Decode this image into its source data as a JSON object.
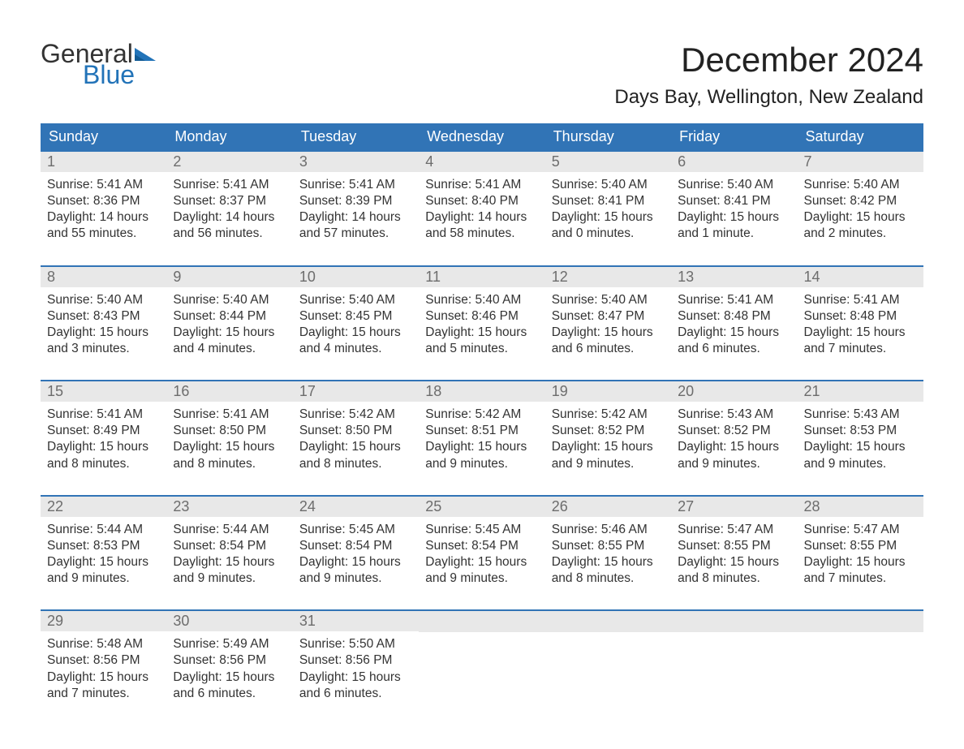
{
  "logo": {
    "line1": "General",
    "line2": "Blue"
  },
  "title": "December 2024",
  "location": "Days Bay, Wellington, New Zealand",
  "colors": {
    "header_bg": "#3174b6",
    "header_text": "#ffffff",
    "daynum_bg": "#e8e8e8",
    "daynum_text": "#6d6d6d",
    "body_text": "#333333",
    "rule": "#3174b6",
    "logo_blue": "#2273b8"
  },
  "layout": {
    "columns": 7,
    "rows": 5,
    "first_weekday": "Sunday"
  },
  "weekdays": [
    "Sunday",
    "Monday",
    "Tuesday",
    "Wednesday",
    "Thursday",
    "Friday",
    "Saturday"
  ],
  "labels": {
    "sunrise": "Sunrise:",
    "sunset": "Sunset:",
    "daylight": "Daylight:"
  },
  "days": [
    {
      "n": 1,
      "sunrise": "5:41 AM",
      "sunset": "8:36 PM",
      "daylight": "14 hours and 55 minutes."
    },
    {
      "n": 2,
      "sunrise": "5:41 AM",
      "sunset": "8:37 PM",
      "daylight": "14 hours and 56 minutes."
    },
    {
      "n": 3,
      "sunrise": "5:41 AM",
      "sunset": "8:39 PM",
      "daylight": "14 hours and 57 minutes."
    },
    {
      "n": 4,
      "sunrise": "5:41 AM",
      "sunset": "8:40 PM",
      "daylight": "14 hours and 58 minutes."
    },
    {
      "n": 5,
      "sunrise": "5:40 AM",
      "sunset": "8:41 PM",
      "daylight": "15 hours and 0 minutes."
    },
    {
      "n": 6,
      "sunrise": "5:40 AM",
      "sunset": "8:41 PM",
      "daylight": "15 hours and 1 minute."
    },
    {
      "n": 7,
      "sunrise": "5:40 AM",
      "sunset": "8:42 PM",
      "daylight": "15 hours and 2 minutes."
    },
    {
      "n": 8,
      "sunrise": "5:40 AM",
      "sunset": "8:43 PM",
      "daylight": "15 hours and 3 minutes."
    },
    {
      "n": 9,
      "sunrise": "5:40 AM",
      "sunset": "8:44 PM",
      "daylight": "15 hours and 4 minutes."
    },
    {
      "n": 10,
      "sunrise": "5:40 AM",
      "sunset": "8:45 PM",
      "daylight": "15 hours and 4 minutes."
    },
    {
      "n": 11,
      "sunrise": "5:40 AM",
      "sunset": "8:46 PM",
      "daylight": "15 hours and 5 minutes."
    },
    {
      "n": 12,
      "sunrise": "5:40 AM",
      "sunset": "8:47 PM",
      "daylight": "15 hours and 6 minutes."
    },
    {
      "n": 13,
      "sunrise": "5:41 AM",
      "sunset": "8:48 PM",
      "daylight": "15 hours and 6 minutes."
    },
    {
      "n": 14,
      "sunrise": "5:41 AM",
      "sunset": "8:48 PM",
      "daylight": "15 hours and 7 minutes."
    },
    {
      "n": 15,
      "sunrise": "5:41 AM",
      "sunset": "8:49 PM",
      "daylight": "15 hours and 8 minutes."
    },
    {
      "n": 16,
      "sunrise": "5:41 AM",
      "sunset": "8:50 PM",
      "daylight": "15 hours and 8 minutes."
    },
    {
      "n": 17,
      "sunrise": "5:42 AM",
      "sunset": "8:50 PM",
      "daylight": "15 hours and 8 minutes."
    },
    {
      "n": 18,
      "sunrise": "5:42 AM",
      "sunset": "8:51 PM",
      "daylight": "15 hours and 9 minutes."
    },
    {
      "n": 19,
      "sunrise": "5:42 AM",
      "sunset": "8:52 PM",
      "daylight": "15 hours and 9 minutes."
    },
    {
      "n": 20,
      "sunrise": "5:43 AM",
      "sunset": "8:52 PM",
      "daylight": "15 hours and 9 minutes."
    },
    {
      "n": 21,
      "sunrise": "5:43 AM",
      "sunset": "8:53 PM",
      "daylight": "15 hours and 9 minutes."
    },
    {
      "n": 22,
      "sunrise": "5:44 AM",
      "sunset": "8:53 PM",
      "daylight": "15 hours and 9 minutes."
    },
    {
      "n": 23,
      "sunrise": "5:44 AM",
      "sunset": "8:54 PM",
      "daylight": "15 hours and 9 minutes."
    },
    {
      "n": 24,
      "sunrise": "5:45 AM",
      "sunset": "8:54 PM",
      "daylight": "15 hours and 9 minutes."
    },
    {
      "n": 25,
      "sunrise": "5:45 AM",
      "sunset": "8:54 PM",
      "daylight": "15 hours and 9 minutes."
    },
    {
      "n": 26,
      "sunrise": "5:46 AM",
      "sunset": "8:55 PM",
      "daylight": "15 hours and 8 minutes."
    },
    {
      "n": 27,
      "sunrise": "5:47 AM",
      "sunset": "8:55 PM",
      "daylight": "15 hours and 8 minutes."
    },
    {
      "n": 28,
      "sunrise": "5:47 AM",
      "sunset": "8:55 PM",
      "daylight": "15 hours and 7 minutes."
    },
    {
      "n": 29,
      "sunrise": "5:48 AM",
      "sunset": "8:56 PM",
      "daylight": "15 hours and 7 minutes."
    },
    {
      "n": 30,
      "sunrise": "5:49 AM",
      "sunset": "8:56 PM",
      "daylight": "15 hours and 6 minutes."
    },
    {
      "n": 31,
      "sunrise": "5:50 AM",
      "sunset": "8:56 PM",
      "daylight": "15 hours and 6 minutes."
    }
  ]
}
